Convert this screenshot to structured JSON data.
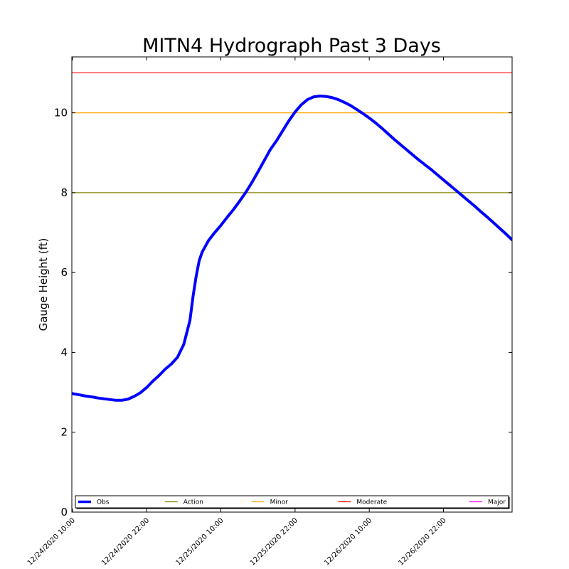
{
  "chart_data": {
    "type": "line",
    "title": "MITN4 Hydrograph Past 3 Days",
    "xlabel": "",
    "ylabel": "Gauge Height (ft)",
    "ylim": [
      0,
      11.4
    ],
    "yticks": [
      0,
      2,
      4,
      6,
      8,
      10
    ],
    "xlim_hours_from_first_tick": [
      -0.1,
      71.1
    ],
    "xticks": [
      {
        "label": "12/24/2020 10:00",
        "hours": 0
      },
      {
        "label": "12/24/2020 22:00",
        "hours": 12
      },
      {
        "label": "12/25/2020 10:00",
        "hours": 24
      },
      {
        "label": "12/25/2020 22:00",
        "hours": 36
      },
      {
        "label": "12/26/2020 10:00",
        "hours": 48
      },
      {
        "label": "12/26/2020 22:00",
        "hours": 60
      }
    ],
    "grid": false,
    "legend_position": "bottom",
    "series": [
      {
        "name": "Obs",
        "color": "#0000ff",
        "points": [
          [
            -0.1,
            2.97
          ],
          [
            1,
            2.94
          ],
          [
            2,
            2.91
          ],
          [
            3,
            2.89
          ],
          [
            4,
            2.86
          ],
          [
            5,
            2.84
          ],
          [
            6,
            2.82
          ],
          [
            7,
            2.8
          ],
          [
            8,
            2.8
          ],
          [
            9,
            2.83
          ],
          [
            10,
            2.9
          ],
          [
            11,
            2.99
          ],
          [
            12,
            3.12
          ],
          [
            13,
            3.28
          ],
          [
            14,
            3.42
          ],
          [
            15,
            3.58
          ],
          [
            16,
            3.71
          ],
          [
            17,
            3.88
          ],
          [
            18,
            4.2
          ],
          [
            19,
            4.8
          ],
          [
            19.5,
            5.4
          ],
          [
            20,
            5.9
          ],
          [
            20.5,
            6.3
          ],
          [
            21,
            6.52
          ],
          [
            22,
            6.8
          ],
          [
            23,
            7.0
          ],
          [
            24,
            7.18
          ],
          [
            25,
            7.38
          ],
          [
            26,
            7.57
          ],
          [
            27,
            7.78
          ],
          [
            28,
            8.0
          ],
          [
            29,
            8.25
          ],
          [
            30,
            8.52
          ],
          [
            31,
            8.8
          ],
          [
            32,
            9.08
          ],
          [
            33,
            9.3
          ],
          [
            34,
            9.55
          ],
          [
            35,
            9.8
          ],
          [
            36,
            10.02
          ],
          [
            37,
            10.2
          ],
          [
            38,
            10.33
          ],
          [
            39,
            10.4
          ],
          [
            40,
            10.42
          ],
          [
            41,
            10.41
          ],
          [
            42,
            10.38
          ],
          [
            43,
            10.33
          ],
          [
            44,
            10.26
          ],
          [
            45,
            10.18
          ],
          [
            46,
            10.08
          ],
          [
            47,
            9.98
          ],
          [
            48,
            9.87
          ],
          [
            49,
            9.75
          ],
          [
            50,
            9.62
          ],
          [
            51,
            9.48
          ],
          [
            52,
            9.34
          ],
          [
            53,
            9.21
          ],
          [
            54,
            9.08
          ],
          [
            55,
            8.95
          ],
          [
            56,
            8.82
          ],
          [
            57,
            8.7
          ],
          [
            58,
            8.58
          ],
          [
            59,
            8.45
          ],
          [
            60,
            8.32
          ],
          [
            61,
            8.19
          ],
          [
            62,
            8.06
          ],
          [
            63,
            7.93
          ],
          [
            64,
            7.8
          ],
          [
            65,
            7.67
          ],
          [
            66,
            7.53
          ],
          [
            67,
            7.4
          ],
          [
            68,
            7.26
          ],
          [
            69,
            7.12
          ],
          [
            70,
            6.98
          ],
          [
            71.1,
            6.82
          ]
        ]
      },
      {
        "name": "Action",
        "color": "#808000",
        "value": 8
      },
      {
        "name": "Minor",
        "color": "#ffa500",
        "value": 10
      },
      {
        "name": "Moderate",
        "color": "#ff0000",
        "value": 11
      },
      {
        "name": "Major",
        "color": "#ff00ff",
        "value": null
      }
    ]
  }
}
